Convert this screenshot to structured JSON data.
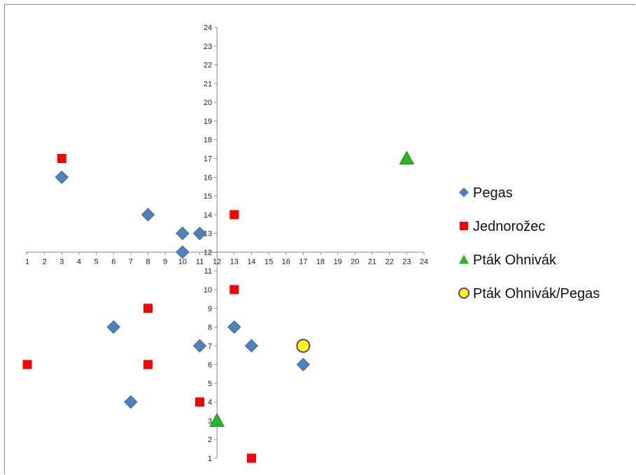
{
  "chart_data": {
    "type": "scatter",
    "title": "",
    "xlabel": "",
    "ylabel": "",
    "xlim": [
      1,
      24
    ],
    "ylim": [
      1,
      24
    ],
    "xticks": [
      1,
      2,
      3,
      4,
      5,
      6,
      7,
      8,
      9,
      10,
      11,
      12,
      13,
      14,
      15,
      16,
      17,
      18,
      19,
      20,
      21,
      22,
      23,
      24
    ],
    "yticks": [
      1,
      2,
      3,
      4,
      5,
      6,
      7,
      8,
      9,
      10,
      11,
      12,
      13,
      14,
      15,
      16,
      17,
      18,
      19,
      20,
      21,
      22,
      23,
      24
    ],
    "x_axis_crosses_y_at": 12,
    "y_axis_crosses_x_at": 12,
    "grid": false,
    "legend_position": "right",
    "series": [
      {
        "name": "Pegas",
        "marker": "diamond",
        "color": "#4f81bd",
        "points": [
          [
            3,
            16
          ],
          [
            8,
            14
          ],
          [
            10,
            13
          ],
          [
            11,
            13
          ],
          [
            10,
            12
          ],
          [
            6,
            8
          ],
          [
            11,
            7
          ],
          [
            7,
            4
          ],
          [
            13,
            8
          ],
          [
            14,
            7
          ],
          [
            17,
            6
          ]
        ]
      },
      {
        "name": "Jednorožec",
        "marker": "square",
        "color": "#ff0000",
        "points": [
          [
            3,
            17
          ],
          [
            13,
            14
          ],
          [
            13,
            10
          ],
          [
            8,
            9
          ],
          [
            1,
            6
          ],
          [
            8,
            6
          ],
          [
            11,
            4
          ],
          [
            14,
            1
          ]
        ]
      },
      {
        "name": "Pták Ohnivák",
        "marker": "triangle",
        "color": "#22bb22",
        "points": [
          [
            23,
            17
          ],
          [
            12,
            3
          ]
        ]
      },
      {
        "name": "Pták Ohnivák/Pegas",
        "marker": "circle",
        "color": "#ffff00",
        "edge_color": "#7030a0",
        "points": [
          [
            17,
            7
          ]
        ]
      }
    ]
  }
}
